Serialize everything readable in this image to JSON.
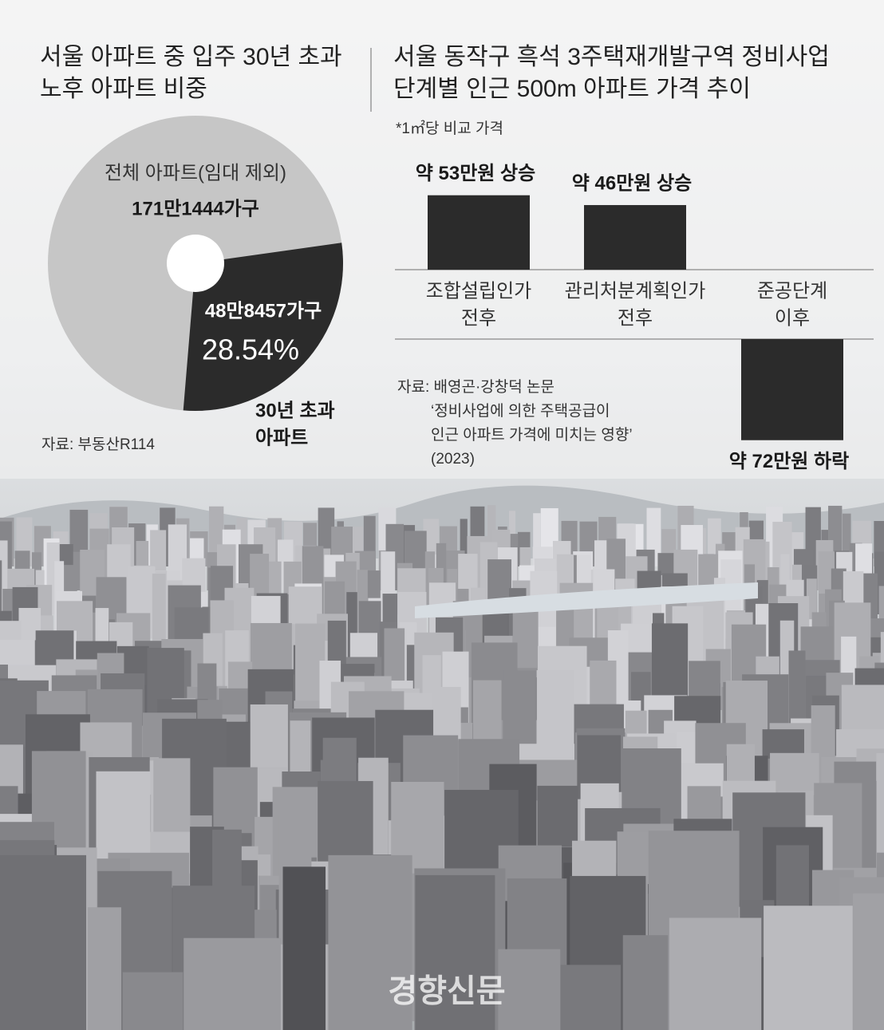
{
  "chart_data": [
    {
      "type": "pie",
      "title": [
        "서울 아파트 중 입주 30년 초과",
        "노후 아파트 비중"
      ],
      "slices": [
        {
          "name": [
            "전체 아파트(임대 제외)"
          ],
          "value": 1711444,
          "value_label": "171만1444가구",
          "color": "#c6c6c6"
        },
        {
          "name": [
            "30년 초과",
            "아파트"
          ],
          "value": 488457,
          "value_label": "48만8457가구",
          "percent": 28.54,
          "percent_label": "28.54%",
          "color": "#2b2b2b"
        }
      ],
      "source": "자료: 부동산R114"
    },
    {
      "type": "bar",
      "title": [
        "서울 동작구 흑석 3주택재개발구역 정비사업",
        "단계별 인근 500m 아파트 가격 추이"
      ],
      "subtitle": "*1㎡당 비교 가격",
      "categories": [
        [
          "조합설립인가",
          "전후"
        ],
        [
          "관리처분계획인가",
          "전후"
        ],
        [
          "준공단계",
          "이후"
        ]
      ],
      "values": [
        53,
        46,
        -72
      ],
      "value_labels": [
        "약 53만원 상승",
        "약 46만원 상승",
        "약 72만원 하락"
      ],
      "color": "#2b2b2b",
      "source": [
        "자료: 배영곤·강창덕 논문",
        "‘정비사업에 의한 주택공급이",
        "인근 아파트 가격에 미치는 영향’",
        "(2023)"
      ]
    }
  ],
  "watermark": "경향신문"
}
